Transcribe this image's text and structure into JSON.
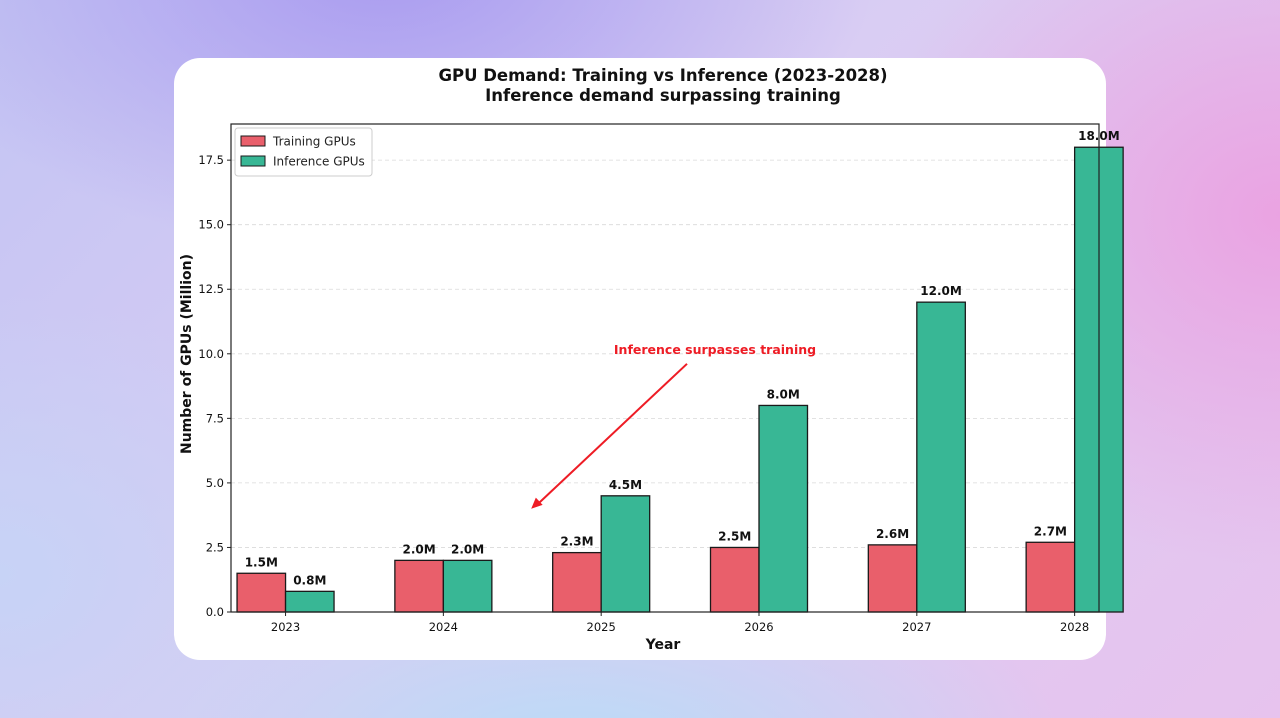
{
  "chart_data": {
    "type": "bar",
    "title": "GPU Demand: Training vs Inference (2023-2028)",
    "subtitle": "Inference demand surpassing training",
    "xlabel": "Year",
    "ylabel": "Number of GPUs (Million)",
    "categories": [
      "2023",
      "2024",
      "2025",
      "2026",
      "2027",
      "2028"
    ],
    "series": [
      {
        "name": "Training GPUs",
        "color": "#e95f6b",
        "values": [
          1.5,
          2.0,
          2.3,
          2.5,
          2.6,
          2.7
        ],
        "labels": [
          "1.5M",
          "2.0M",
          "2.3M",
          "2.5M",
          "2.6M",
          "2.7M"
        ]
      },
      {
        "name": "Inference GPUs",
        "color": "#38b795",
        "values": [
          0.8,
          2.0,
          4.5,
          8.0,
          12.0,
          18.0
        ],
        "labels": [
          "0.8M",
          "2.0M",
          "4.5M",
          "8.0M",
          "12.0M",
          "18.0M"
        ]
      }
    ],
    "ylim": [
      0,
      18.9
    ],
    "yticks": [
      0,
      2.5,
      5,
      7.5,
      10,
      12.5,
      15,
      17.5
    ],
    "ytick_labels": [
      "0.0",
      "2.5",
      "5.0",
      "7.5",
      "10.0",
      "12.5",
      "15.0",
      "17.5"
    ],
    "grid": "horizontal dashed",
    "legend_position": "upper-left",
    "annotation": {
      "text": "Inference surpasses training",
      "color": "#ee1c25",
      "text_at": {
        "x": "2026",
        "y": 10.0
      },
      "arrow_to": {
        "x": "2025",
        "y": 4.0
      }
    }
  }
}
